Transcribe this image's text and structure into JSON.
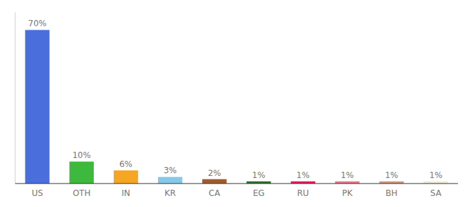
{
  "chart_data": {
    "type": "bar",
    "categories": [
      "US",
      "OTH",
      "IN",
      "KR",
      "CA",
      "EG",
      "RU",
      "PK",
      "BH",
      "SA"
    ],
    "values": [
      70,
      10,
      6,
      3,
      2,
      1,
      1,
      1,
      1,
      1
    ],
    "value_labels": [
      "70%",
      "10%",
      "6%",
      "3%",
      "2%",
      "1%",
      "1%",
      "1%",
      "1%",
      "1%"
    ],
    "colors": [
      "#4a6fdc",
      "#3dba3d",
      "#f5a623",
      "#85c8e8",
      "#a05c2a",
      "#2d6e2d",
      "#e8185a",
      "#e8788a",
      "#d4957a",
      "#f0ead8"
    ],
    "ylim": [
      0,
      78
    ],
    "data_labels": true,
    "tick_labels": "x"
  }
}
